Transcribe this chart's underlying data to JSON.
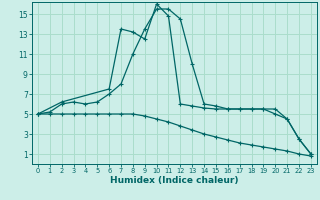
{
  "xlabel": "Humidex (Indice chaleur)",
  "bg_color": "#cceee8",
  "grid_color": "#aaddcc",
  "line_color": "#006666",
  "xlim": [
    -0.5,
    23.5
  ],
  "ylim": [
    0,
    16.2
  ],
  "xticks": [
    0,
    1,
    2,
    3,
    4,
    5,
    6,
    7,
    8,
    9,
    10,
    11,
    12,
    13,
    14,
    15,
    16,
    17,
    18,
    19,
    20,
    21,
    22,
    23
  ],
  "yticks": [
    1,
    3,
    5,
    7,
    9,
    11,
    13,
    15
  ],
  "line1_x": [
    0,
    1,
    2,
    3,
    4,
    5,
    6,
    7,
    8,
    9,
    10,
    11,
    12,
    13,
    14,
    15,
    16,
    17,
    18,
    19,
    20,
    21,
    22,
    23
  ],
  "line1_y": [
    5.0,
    5.2,
    6.0,
    6.2,
    6.0,
    6.2,
    7.0,
    8.0,
    11.0,
    13.5,
    15.5,
    15.5,
    14.5,
    10.0,
    6.0,
    5.8,
    5.5,
    5.5,
    5.5,
    5.5,
    5.5,
    4.5,
    2.5,
    1.0
  ],
  "line2_x": [
    0,
    2,
    6,
    7,
    8,
    9,
    10,
    11,
    12,
    13,
    14,
    15,
    16,
    17,
    18,
    19,
    20,
    21,
    22,
    23
  ],
  "line2_y": [
    5.0,
    6.2,
    7.5,
    13.5,
    13.2,
    12.5,
    16.0,
    14.8,
    6.0,
    5.8,
    5.6,
    5.5,
    5.5,
    5.5,
    5.5,
    5.5,
    5.0,
    4.5,
    2.5,
    1.0
  ],
  "line3_x": [
    0,
    1,
    2,
    3,
    4,
    5,
    6,
    7,
    8,
    9,
    10,
    11,
    12,
    13,
    14,
    15,
    16,
    17,
    18,
    19,
    20,
    21,
    22,
    23
  ],
  "line3_y": [
    5.0,
    5.0,
    5.0,
    5.0,
    5.0,
    5.0,
    5.0,
    5.0,
    5.0,
    4.8,
    4.5,
    4.2,
    3.8,
    3.4,
    3.0,
    2.7,
    2.4,
    2.1,
    1.9,
    1.7,
    1.5,
    1.3,
    1.0,
    0.8
  ]
}
